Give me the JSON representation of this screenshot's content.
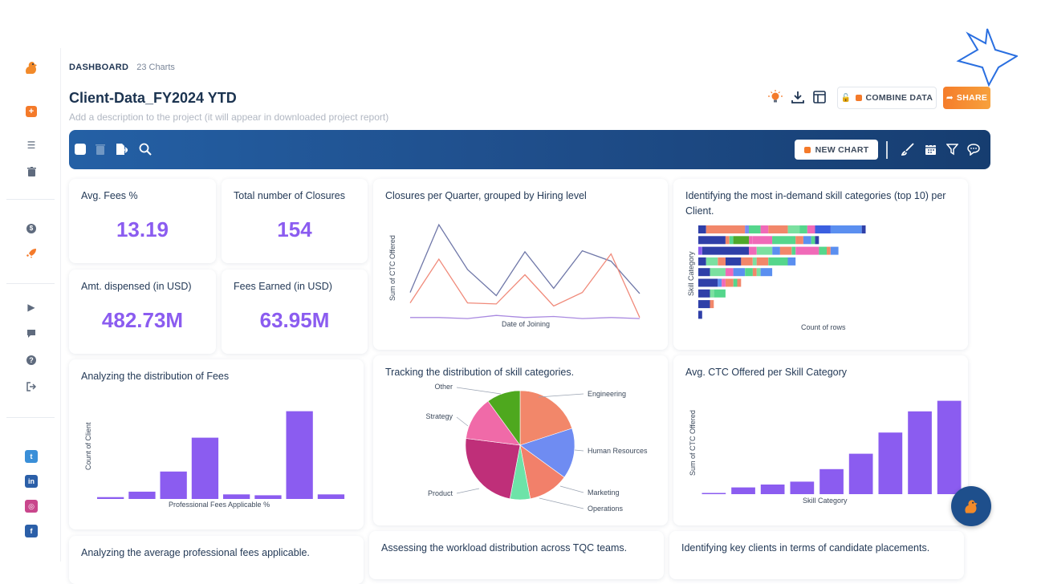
{
  "breadcrumb": {
    "section": "DASHBOARD",
    "count": "23 Charts"
  },
  "project": {
    "title": "Client-Data_FY2024 YTD",
    "description_placeholder": "Add a description to the project (it will appear in downloaded project report)"
  },
  "actions": {
    "combine_label": "COMBINE DATA",
    "share_label": "SHARE"
  },
  "toolbar": {
    "new_chart_label": "NEW CHART"
  },
  "kpis": [
    {
      "label": "Avg. Fees %",
      "value": "13.19"
    },
    {
      "label": "Total number of Closures",
      "value": "154"
    },
    {
      "label": "Amt. dispensed (in USD)",
      "value": "482.73M"
    },
    {
      "label": "Fees Earned (in USD)",
      "value": "63.95M"
    }
  ],
  "charts": {
    "closures": {
      "title": "Closures per Quarter, grouped by Hiring level",
      "xlabel": "Date of Joining",
      "ylabel": "Sum of CTC Offered"
    },
    "skills": {
      "title": "Identifying the most in-demand skill categories (top 10) per Client.",
      "xlabel": "Count of rows",
      "ylabel": "Skill Category"
    },
    "fees": {
      "title": "Analyzing the distribution of Fees",
      "xlabel": "Professional Fees Applicable %",
      "ylabel": "Count of Client"
    },
    "skilldist": {
      "title": "Tracking the distribution of skill categories."
    },
    "ctc": {
      "title": "Avg. CTC Offered per Skill Category",
      "xlabel": "Skill Category",
      "ylabel": "Sum of CTC Offered"
    },
    "avgfees": {
      "title": "Analyzing the average professional fees applicable."
    },
    "workload": {
      "title": "Assessing the workload distribution across TQC teams."
    },
    "clients": {
      "title": "Identifying key clients in terms of candidate placements."
    }
  },
  "chart_data": [
    {
      "type": "line",
      "title": "Closures per Quarter, grouped by Hiring level",
      "xlabel": "Date of Joining",
      "ylabel": "Sum of CTC Offered",
      "ylim": [
        0,
        100
      ],
      "x": [
        1,
        2,
        3,
        4,
        5,
        6,
        7,
        8,
        9
      ],
      "series": [
        {
          "values": [
            28,
            93,
            50,
            25,
            67,
            32,
            68,
            58,
            27
          ],
          "color": "#6f77a8"
        },
        {
          "values": [
            18,
            60,
            18,
            17,
            45,
            15,
            28,
            65,
            4
          ],
          "color": "#f08a7a"
        },
        {
          "values": [
            4,
            4,
            3,
            6,
            4,
            5,
            3,
            4,
            3
          ],
          "color": "#a989e0"
        }
      ]
    },
    {
      "type": "bar",
      "orientation": "horizontal",
      "title": "Identifying the most in-demand skill categories (top 10) per Client.",
      "xlabel": "Count of rows",
      "ylabel": "Skill Category",
      "rows": [
        [
          [
            2,
            "#2f3fa8"
          ],
          [
            10,
            "#f2876a"
          ],
          [
            1,
            "#7b8bf0"
          ],
          [
            3,
            "#55d68c"
          ],
          [
            2,
            "#f06ab8"
          ],
          [
            5,
            "#f2876a"
          ],
          [
            3,
            "#7be0a0"
          ],
          [
            2,
            "#55d68c"
          ],
          [
            2,
            "#f06ab8"
          ],
          [
            4,
            "#3b5fe0"
          ],
          [
            8,
            "#5b8ff0"
          ],
          [
            1,
            "#2f3fa8"
          ]
        ],
        [
          [
            7,
            "#2f3fa8"
          ],
          [
            1,
            "#f2876a"
          ],
          [
            1,
            "#55d68c"
          ],
          [
            4,
            "#4ea82a"
          ],
          [
            1,
            "#f06ab8"
          ],
          [
            5,
            "#f06ab8"
          ],
          [
            6,
            "#55d68c"
          ],
          [
            2,
            "#f2876a"
          ],
          [
            2,
            "#5b8ff0"
          ],
          [
            1,
            "#55d68c"
          ],
          [
            1,
            "#2f3fa8"
          ]
        ],
        [
          [
            1,
            "#8b5cf0"
          ],
          [
            12,
            "#2f3fa8"
          ],
          [
            2,
            "#f06ab8"
          ],
          [
            4,
            "#7be0a0"
          ],
          [
            2,
            "#5b8ff0"
          ],
          [
            3,
            "#f2876a"
          ],
          [
            1,
            "#55d68c"
          ],
          [
            6,
            "#f06ab8"
          ],
          [
            2,
            "#55d68c"
          ],
          [
            1,
            "#f2876a"
          ],
          [
            2,
            "#5b8ff0"
          ]
        ],
        [
          [
            2,
            "#2f3fa8"
          ],
          [
            3,
            "#7be0a0"
          ],
          [
            2,
            "#f2876a"
          ],
          [
            4,
            "#2f3fa8"
          ],
          [
            3,
            "#f2876a"
          ],
          [
            1,
            "#7be0a0"
          ],
          [
            3,
            "#f2876a"
          ],
          [
            5,
            "#55d68c"
          ],
          [
            2,
            "#5b8ff0"
          ]
        ],
        [
          [
            3,
            "#2f3fa8"
          ],
          [
            4,
            "#7be0a0"
          ],
          [
            2,
            "#f06ab8"
          ],
          [
            3,
            "#5b8ff0"
          ],
          [
            2,
            "#55d68c"
          ],
          [
            1,
            "#f2876a"
          ],
          [
            1,
            "#7be0a0"
          ],
          [
            3,
            "#5b8ff0"
          ]
        ],
        [
          [
            5,
            "#2f3fa8"
          ],
          [
            1,
            "#5b8ff0"
          ],
          [
            1,
            "#f06ab8"
          ],
          [
            2,
            "#f2876a"
          ],
          [
            1,
            "#55d68c"
          ],
          [
            1,
            "#f2876a"
          ]
        ],
        [
          [
            3,
            "#2f3fa8"
          ],
          [
            1,
            "#7be0a0"
          ],
          [
            3,
            "#55d68c"
          ]
        ],
        [
          [
            3,
            "#2f3fa8"
          ],
          [
            1,
            "#f2876a"
          ]
        ],
        [
          [
            1,
            "#2f3fa8"
          ]
        ]
      ]
    },
    {
      "type": "bar",
      "title": "Analyzing the distribution of Fees",
      "xlabel": "Professional Fees Applicable %",
      "ylabel": "Count of Client",
      "values": [
        2,
        8,
        30,
        67,
        5,
        4,
        96,
        5
      ],
      "ylim": [
        0,
        100
      ],
      "color": "#8b5cf0"
    },
    {
      "type": "pie",
      "title": "Tracking the distribution of skill categories.",
      "labels": [
        "Engineering",
        "Human Resources",
        "Marketing",
        "Operations",
        "Product",
        "Strategy",
        "Other"
      ],
      "values": [
        20,
        15,
        12,
        6,
        24,
        13,
        10
      ],
      "colors": [
        "#f2876a",
        "#6f8cf2",
        "#f2806a",
        "#6de3a8",
        "#bf2f79",
        "#f06aa8",
        "#4ea81e"
      ]
    },
    {
      "type": "bar",
      "title": "Avg. CTC Offered per Skill Category",
      "xlabel": "Skill Category",
      "ylabel": "Sum of CTC Offered",
      "values": [
        1,
        7,
        10,
        13,
        26,
        42,
        64,
        86,
        97
      ],
      "ylim": [
        0,
        100
      ],
      "color": "#8b5cf0"
    }
  ]
}
